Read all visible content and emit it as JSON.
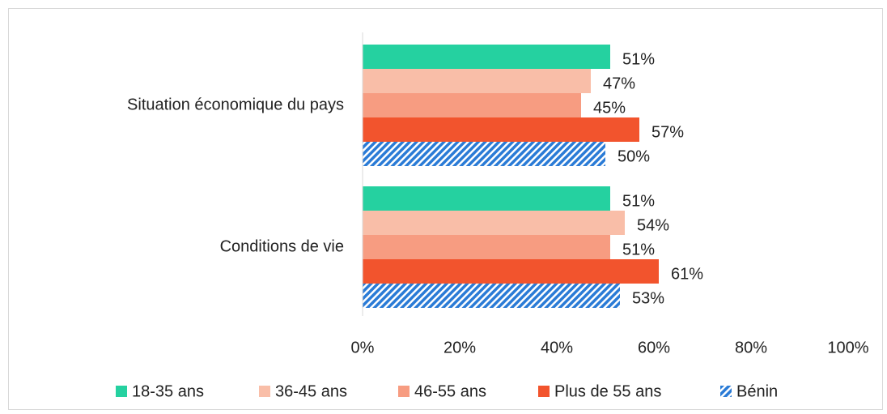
{
  "chart_data": {
    "type": "bar",
    "orientation": "horizontal",
    "categories": [
      "Situation économique du pays",
      "Conditions de vie"
    ],
    "series": [
      {
        "name": "18-35 ans",
        "color": "#25d1a0",
        "values": [
          51,
          51
        ],
        "value_labels": [
          "51%",
          "51%"
        ]
      },
      {
        "name": "36-45 ans",
        "color": "#f9bea8",
        "values": [
          47,
          54
        ],
        "value_labels": [
          "47%",
          "54%"
        ]
      },
      {
        "name": "46-55 ans",
        "color": "#f79c81",
        "values": [
          45,
          51
        ],
        "value_labels": [
          "45%",
          "51%"
        ]
      },
      {
        "name": "Plus de 55 ans",
        "color": "#f2542d",
        "values": [
          57,
          61
        ],
        "value_labels": [
          "57%",
          "61%"
        ]
      },
      {
        "name": "Bénin",
        "color": "#2a7bd6",
        "hatch": true,
        "values": [
          50,
          53
        ],
        "value_labels": [
          "50%",
          "53%"
        ]
      }
    ],
    "xlim": [
      0,
      100
    ],
    "xticks": [
      {
        "value": 0,
        "label": "0%"
      },
      {
        "value": 20,
        "label": "20%"
      },
      {
        "value": 40,
        "label": "40%"
      },
      {
        "value": 60,
        "label": "60%"
      },
      {
        "value": 80,
        "label": "80%"
      },
      {
        "value": 100,
        "label": "100%"
      }
    ],
    "grid": false,
    "legend": "bottom"
  }
}
